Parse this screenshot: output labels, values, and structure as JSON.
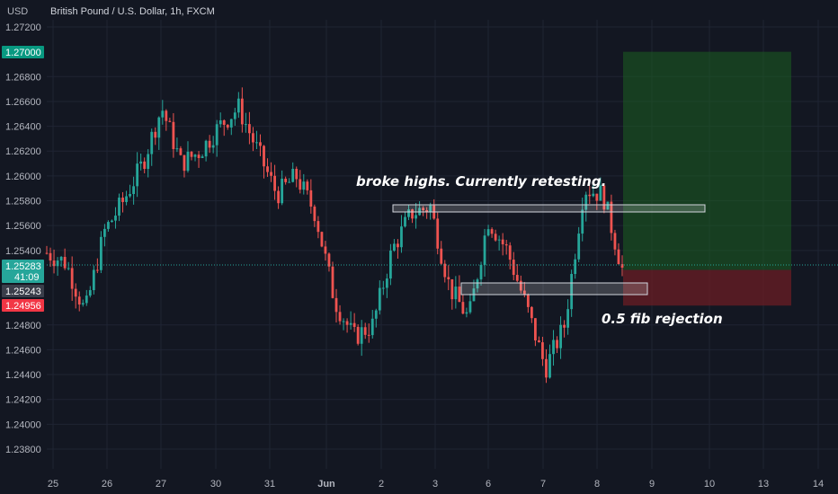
{
  "header": {
    "currency": "USD",
    "title": "British Pound / U.S. Dollar, 1h, FXCM"
  },
  "colors": {
    "background": "#131722",
    "grid": "#1f2433",
    "up": "#26a69a",
    "down": "#ef5350",
    "profit_zone": "#1b5e20",
    "loss_zone": "#6b1d24",
    "target_badge": "#089981",
    "stop_badge": "#f23645",
    "price_badge": "#26a69a"
  },
  "price_badges": {
    "target": "1.27000",
    "current": "1.25283",
    "countdown": "41:09",
    "entry": "1.25243",
    "stop": "1.24956"
  },
  "annotations": {
    "top_note": "broke highs. Currently retesting.",
    "bottom_note": "0.5 fib rejection"
  },
  "chart_data": {
    "type": "candlestick",
    "title": "British Pound / U.S. Dollar, 1h, FXCM",
    "ylim": [
      1.237,
      1.2722
    ],
    "y_ticks": [
      "1.27200",
      "1.26800",
      "1.26600",
      "1.26400",
      "1.26200",
      "1.26000",
      "1.25800",
      "1.25600",
      "1.25400",
      "1.24800",
      "1.24600",
      "1.24400",
      "1.24200",
      "1.24000",
      "1.23800"
    ],
    "x_ticks": [
      "25",
      "26",
      "27",
      "30",
      "31",
      "Jun",
      "2",
      "3",
      "6",
      "7",
      "8",
      "9",
      "10",
      "13",
      "14"
    ],
    "grid": true,
    "close_path": [
      {
        "x": "25",
        "y": 1.2538
      },
      {
        "x": "25.5",
        "y": 1.253
      },
      {
        "x": "25.7",
        "y": 1.249
      },
      {
        "x": "26",
        "y": 1.2555
      },
      {
        "x": "26.5",
        "y": 1.258
      },
      {
        "x": "27",
        "y": 1.261
      },
      {
        "x": "27.2",
        "y": 1.2655
      },
      {
        "x": "27.6",
        "y": 1.261
      },
      {
        "x": "30",
        "y": 1.262
      },
      {
        "x": "30.4",
        "y": 1.264
      },
      {
        "x": "30.8",
        "y": 1.2655
      },
      {
        "x": "31",
        "y": 1.262
      },
      {
        "x": "31.5",
        "y": 1.2585
      },
      {
        "x": "Jun",
        "y": 1.26
      },
      {
        "x": "Jun.5",
        "y": 1.257
      },
      {
        "x": "Jun.8",
        "y": 1.25
      },
      {
        "x": "2",
        "y": 1.247
      },
      {
        "x": "2.3",
        "y": 1.248
      },
      {
        "x": "2.6",
        "y": 1.254
      },
      {
        "x": "3",
        "y": 1.257
      },
      {
        "x": "3.4",
        "y": 1.2575
      },
      {
        "x": "3.8",
        "y": 1.251
      },
      {
        "x": "6",
        "y": 1.2485
      },
      {
        "x": "6.3",
        "y": 1.2565
      },
      {
        "x": "6.7",
        "y": 1.254
      },
      {
        "x": "7",
        "y": 1.2495
      },
      {
        "x": "7.2",
        "y": 1.2445
      },
      {
        "x": "7.5",
        "y": 1.248
      },
      {
        "x": "7.8",
        "y": 1.259
      },
      {
        "x": "8",
        "y": 1.2585
      },
      {
        "x": "8.3",
        "y": 1.2525
      }
    ],
    "position": {
      "target": 1.27,
      "entry": 1.25243,
      "stop": 1.24956,
      "current": 1.25283
    }
  }
}
